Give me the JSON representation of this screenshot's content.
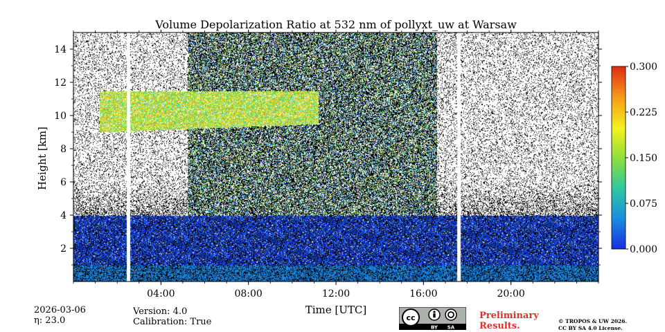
{
  "chart_data": {
    "type": "heatmap",
    "title": "Volume Depolarization Ratio at 532 nm of pollyxt_uw at Warsaw",
    "xlabel": "Time [UTC]",
    "ylabel": "Height [km]",
    "xlim_hours": [
      0,
      24
    ],
    "ylim_km": [
      0,
      15
    ],
    "x_ticks": [
      {
        "value": 4,
        "label": "04:00"
      },
      {
        "value": 8,
        "label": "08:00"
      },
      {
        "value": 12,
        "label": "12:00"
      },
      {
        "value": 16,
        "label": "16:00"
      },
      {
        "value": 20,
        "label": "20:00"
      }
    ],
    "y_ticks": [
      {
        "value": 2,
        "label": "2"
      },
      {
        "value": 4,
        "label": "4"
      },
      {
        "value": 6,
        "label": "6"
      },
      {
        "value": 8,
        "label": "8"
      },
      {
        "value": 10,
        "label": "10"
      },
      {
        "value": 12,
        "label": "12"
      },
      {
        "value": 14,
        "label": "14"
      }
    ],
    "colorbar": {
      "min": 0.0,
      "max": 0.3,
      "ticks": [
        {
          "value": 0.0,
          "label": "0.000"
        },
        {
          "value": 0.075,
          "label": "0.075"
        },
        {
          "value": 0.15,
          "label": "0.150"
        },
        {
          "value": 0.225,
          "label": "0.225"
        },
        {
          "value": 0.3,
          "label": "0.300"
        }
      ],
      "colors": [
        "#1a2ee0",
        "#1b8fe0",
        "#2fc8a0",
        "#8ee03a",
        "#f4f21e",
        "#f59b18",
        "#e02a12"
      ]
    },
    "features": {
      "boundary_layer": {
        "top_km": 1.0,
        "ratio": 0.05
      },
      "aerosol_layer": {
        "bottom_km": 0,
        "top_km": 4.0,
        "ratio": 0.03
      },
      "cirrus": {
        "time_start_h": 1.2,
        "time_end_h": 11.2,
        "base_km": 9.0,
        "top_km": 11.5,
        "ratio": 0.18
      },
      "data_gaps_h": [
        2.5,
        17.6
      ]
    }
  },
  "meta": {
    "date": "2026-03-06",
    "eta": "η: 23.0",
    "version": "Version: 4.0",
    "calibration": "Calibration: True",
    "preliminary_line1": "Preliminary",
    "preliminary_line2": "Results.",
    "copyright_line1": "© TROPOS & UW 2026.",
    "copyright_line2": "CC BY SA 4.0 License.",
    "license_labels": {
      "cc": "cc",
      "by": "BY",
      "sa": "SA"
    }
  }
}
